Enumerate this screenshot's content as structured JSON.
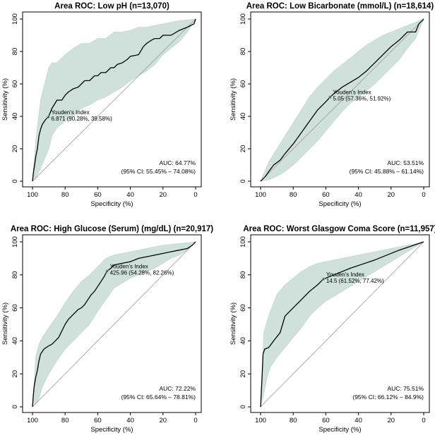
{
  "chart_data": [
    {
      "type": "line",
      "title": "Area ROC: Low pH (n=13,070)",
      "xlabel": "Specificity (%)",
      "ylabel": "Sensitivity (%)",
      "xlim": [
        100,
        0
      ],
      "ylim": [
        0,
        100
      ],
      "x_ticks": [
        100,
        80,
        60,
        40,
        20,
        0
      ],
      "y_ticks": [
        0,
        20,
        40,
        60,
        80,
        100
      ],
      "grid": false,
      "diagonal_reference": true,
      "roc": {
        "specificity": [
          100,
          99.5,
          99,
          98,
          97,
          96,
          95,
          94,
          92,
          91,
          90.28,
          88,
          85,
          82,
          80,
          78,
          75,
          72,
          70,
          68,
          65,
          62,
          60,
          58,
          55,
          52,
          50,
          48,
          45,
          42,
          40,
          35,
          32,
          30,
          27,
          25,
          22,
          20,
          15,
          10,
          5,
          1,
          0
        ],
        "sensitivity": [
          0,
          5,
          8,
          15,
          20,
          28,
          32,
          35,
          38,
          39,
          39.58,
          45,
          50,
          50,
          53,
          55,
          57,
          58,
          60,
          62,
          62,
          65,
          65,
          67,
          67,
          70,
          70,
          72,
          73,
          75,
          77,
          78,
          83,
          85,
          87,
          88,
          88,
          90,
          90,
          93,
          95,
          97,
          100
        ]
      },
      "ci_band": {
        "specificity": [
          100,
          98,
          95,
          90,
          88,
          85,
          80,
          75,
          70,
          65,
          60,
          55,
          50,
          45,
          40,
          35,
          30,
          25,
          20,
          15,
          10,
          5,
          0
        ],
        "upper": [
          0,
          25,
          50,
          70,
          73,
          73,
          78,
          82,
          85,
          85,
          88,
          88,
          92,
          92,
          93,
          95,
          95,
          96,
          97,
          98,
          99,
          99.5,
          100
        ],
        "lower": [
          0,
          2,
          8,
          20,
          28,
          33,
          37,
          40,
          45,
          47,
          50,
          52,
          55,
          58,
          62,
          65,
          68,
          72,
          78,
          82,
          86,
          92,
          100
        ]
      },
      "youden_point": [
        90.28,
        39.58
      ],
      "youden_label": "Youden's Index",
      "youden_value": "6.871 (90.28%, 39.58%)",
      "auc_text": "AUC: 64.77%",
      "ci_text": "(95% CI: 55.45% – 74.08%)"
    },
    {
      "type": "line",
      "title": "Area ROC: Low Bicarbonate (mmol/L) (n=18,614)",
      "xlabel": "Specificity (%)",
      "ylabel": "Sensitivity (%)",
      "xlim": [
        100,
        0
      ],
      "ylim": [
        0,
        100
      ],
      "x_ticks": [
        100,
        80,
        60,
        40,
        20,
        0
      ],
      "y_ticks": [
        0,
        20,
        40,
        60,
        80,
        100
      ],
      "grid": false,
      "diagonal_reference": true,
      "roc": {
        "specificity": [
          100,
          97,
          95,
          92,
          88,
          85,
          80,
          75,
          70,
          65,
          60,
          57.36,
          55,
          50,
          45,
          40,
          35,
          30,
          25,
          20,
          15,
          10,
          5,
          3,
          0
        ],
        "sensitivity": [
          0,
          3,
          6,
          10,
          13,
          17,
          23,
          30,
          37,
          44,
          49,
          51.92,
          54,
          58,
          61,
          64,
          68,
          73,
          78,
          83,
          87,
          92,
          92,
          97,
          100
        ]
      },
      "ci_band": {
        "specificity": [
          100,
          95,
          90,
          85,
          80,
          75,
          70,
          65,
          60,
          55,
          50,
          45,
          40,
          35,
          30,
          25,
          20,
          15,
          10,
          5,
          0
        ],
        "upper": [
          0,
          12,
          20,
          28,
          36,
          44,
          52,
          58,
          63,
          68,
          72,
          76,
          80,
          84,
          87,
          90,
          92,
          94,
          96,
          98,
          100
        ],
        "lower": [
          0,
          1,
          3,
          6,
          10,
          15,
          20,
          25,
          31,
          37,
          43,
          48,
          52,
          56,
          60,
          65,
          70,
          75,
          82,
          88,
          100
        ]
      },
      "youden_point": [
        57.36,
        51.92
      ],
      "youden_label": "Youden's Index",
      "youden_value": "5.05 (57.36%, 51.92%)",
      "auc_text": "AUC: 53.51%",
      "ci_text": "(95% CI: 45.88% – 61.14%)"
    },
    {
      "type": "line",
      "title": "Area ROC: High Glucose (Serum) (mg/dL) (n=20,917)",
      "xlabel": "Specificity (%)",
      "ylabel": "Sensitivity (%)",
      "xlim": [
        100,
        0
      ],
      "ylim": [
        0,
        100
      ],
      "x_ticks": [
        100,
        80,
        60,
        40,
        20,
        0
      ],
      "y_ticks": [
        0,
        20,
        40,
        60,
        80,
        100
      ],
      "grid": false,
      "diagonal_reference": true,
      "roc": {
        "specificity": [
          100,
          99.5,
          99,
          98,
          97,
          96,
          95,
          93,
          90,
          88,
          86,
          84,
          82,
          80,
          78,
          76,
          74,
          72,
          70,
          68,
          66,
          64,
          62,
          60,
          58,
          56,
          54.28,
          52,
          50,
          45,
          40,
          35,
          30,
          25,
          20,
          15,
          10,
          5,
          2,
          0
        ],
        "sensitivity": [
          0,
          7,
          12,
          18,
          22,
          28,
          32,
          35,
          37,
          38,
          40,
          42,
          46,
          50,
          53,
          55,
          57,
          59,
          60,
          62,
          65,
          68,
          70,
          73,
          76,
          79,
          82.26,
          84,
          86,
          87,
          88,
          90,
          91,
          92,
          93,
          94,
          95,
          96,
          98,
          100
        ]
      },
      "ci_band": {
        "specificity": [
          100,
          98,
          96,
          94,
          90,
          85,
          80,
          75,
          70,
          65,
          60,
          55,
          50,
          45,
          40,
          35,
          30,
          25,
          20,
          15,
          10,
          5,
          0
        ],
        "upper": [
          0,
          30,
          38,
          42,
          48,
          55,
          63,
          70,
          76,
          80,
          85,
          90,
          92,
          93,
          94,
          95,
          96,
          97,
          98,
          98.5,
          99,
          99.5,
          100
        ],
        "lower": [
          0,
          2,
          5,
          12,
          20,
          28,
          35,
          40,
          45,
          50,
          58,
          65,
          72,
          75,
          78,
          80,
          82,
          84,
          87,
          90,
          92,
          95,
          100
        ]
      },
      "youden_point": [
        54.28,
        82.26
      ],
      "youden_label": "Youden's Index",
      "youden_value": "425.96 (54.28%, 82.26%)",
      "auc_text": "AUC: 72.22%",
      "ci_text": "(95% CI: 65.64% – 78.81%)"
    },
    {
      "type": "line",
      "title": "Area ROC: Worst Glasgow Coma Score (n=11,957)",
      "xlabel": "Specificity (%)",
      "ylabel": "Sensitivity (%)",
      "xlim": [
        100,
        0
      ],
      "ylim": [
        0,
        100
      ],
      "x_ticks": [
        100,
        80,
        60,
        40,
        20,
        0
      ],
      "y_ticks": [
        0,
        20,
        40,
        60,
        80,
        100
      ],
      "grid": false,
      "diagonal_reference": true,
      "roc": {
        "specificity": [
          100,
          99,
          98.5,
          97.5,
          95,
          92,
          88,
          85,
          80,
          75,
          70,
          65,
          61.52,
          55,
          45,
          30,
          15,
          0
        ],
        "sensitivity": [
          0,
          20,
          32,
          35,
          36,
          40,
          45,
          55,
          60,
          65,
          70,
          74,
          77.42,
          80,
          84,
          89,
          95,
          100
        ]
      },
      "ci_band": {
        "specificity": [
          100,
          98,
          96,
          94,
          90,
          85,
          80,
          75,
          70,
          65,
          60,
          50,
          40,
          30,
          20,
          10,
          0
        ],
        "upper": [
          0,
          45,
          52,
          58,
          68,
          74,
          78,
          82,
          85,
          87,
          88,
          90,
          92,
          94,
          96,
          98,
          100
        ],
        "lower": [
          0,
          8,
          18,
          24,
          30,
          36,
          42,
          48,
          55,
          60,
          64,
          70,
          76,
          82,
          88,
          94,
          100
        ]
      },
      "youden_point": [
        61.52,
        77.42
      ],
      "youden_label": "Youden's Index",
      "youden_value": "14.5 (61.52%, 77.42%)",
      "auc_text": "AUC: 75.51%",
      "ci_text": "(95% CI: 66.12% – 84.9%)"
    }
  ],
  "colors": {
    "band": "#cfe1da",
    "band_edge": "#b9d3c8",
    "roc_line": "#000000",
    "diagonal": "#9a9a9a",
    "axis": "#000000",
    "youden_marker": "#7fb09c"
  }
}
